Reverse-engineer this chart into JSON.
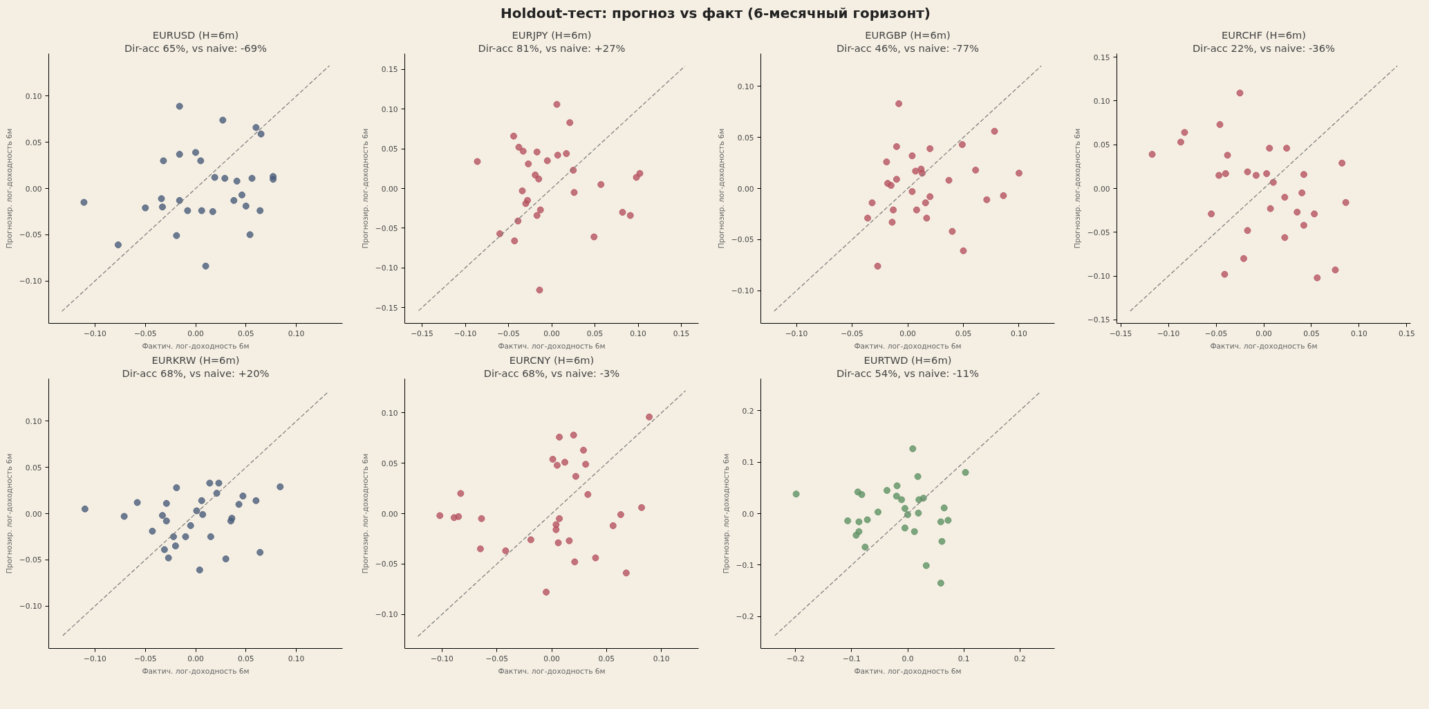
{
  "chart_data": [
    {
      "type": "scatter",
      "title": "EURUSD (H=6m)",
      "subtitle": "Dir-acc 65%, vs naive: -69%",
      "xlabel": "Фактич. лог-доходность 6м",
      "ylabel": "Прогнозир. лог-доходность 6м",
      "annotations": [
        "Holdout-тест: прогноз vs факт (6-месячный горизонт)"
      ],
      "grid": false,
      "xlim": [
        -0.146,
        0.146
      ],
      "ylim": [
        -0.146,
        0.146
      ],
      "xticks": [
        {
          "value": -0.1,
          "label": "−0.10"
        },
        {
          "value": -0.05,
          "label": "−0.05"
        },
        {
          "value": 0,
          "label": "0.00"
        },
        0.05,
        {
          "value": 0.1,
          "label": "0.10"
        }
      ],
      "yticks": [
        {
          "value": -0.1,
          "label": "−0.10"
        },
        {
          "value": -0.05,
          "label": "−0.05"
        },
        {
          "value": 0,
          "label": "0.00"
        },
        0.05,
        {
          "value": 0.1,
          "label": "0.10"
        }
      ],
      "series": [
        {
          "marker": "circle",
          "color": "#4a5d7a",
          "x": [
            -0.111,
            -0.077,
            -0.05,
            -0.034,
            -0.033,
            -0.032,
            -0.016,
            -0.016,
            -0.016,
            -0.019,
            -0.008,
            0.0,
            0.005,
            0.006,
            0.01,
            0.017,
            0.019,
            0.027,
            0.029,
            0.038,
            0.041,
            0.046,
            0.05,
            0.054,
            0.056,
            0.06,
            0.065,
            0.064,
            0.077,
            0.077
          ],
          "values": [
            -0.015,
            -0.061,
            -0.021,
            -0.011,
            -0.02,
            0.03,
            0.089,
            0.037,
            -0.013,
            -0.051,
            -0.024,
            0.039,
            0.03,
            -0.024,
            -0.084,
            -0.025,
            0.012,
            0.074,
            0.011,
            -0.013,
            0.008,
            -0.007,
            -0.019,
            -0.05,
            0.011,
            0.066,
            0.059,
            -0.024,
            0.01,
            0.013
          ]
        },
        {
          "type": "line",
          "marker": "none",
          "line_style": "dashed",
          "color": "#7a7a7a",
          "x": [
            -0.133,
            0.133
          ],
          "values": [
            -0.133,
            0.133
          ]
        }
      ]
    },
    {
      "type": "scatter",
      "title": "EURJPY (H=6m)",
      "subtitle": "Dir-acc 81%, vs naive: +27%",
      "xlabel": "Фактич. лог-доходность 6м",
      "ylabel": "Прогнозир. лог-доходность 6м",
      "grid": false,
      "xlim": [
        -0.17,
        0.17
      ],
      "ylim": [
        -0.17,
        0.17
      ],
      "xticks": [
        {
          "value": -0.15,
          "label": "−0.15"
        },
        {
          "value": -0.1,
          "label": "−0.10"
        },
        {
          "value": -0.05,
          "label": "−0.05"
        },
        {
          "value": 0,
          "label": "0.00"
        },
        0.05,
        {
          "value": 0.1,
          "label": "0.10"
        },
        0.15
      ],
      "yticks": [
        {
          "value": -0.15,
          "label": "−0.15"
        },
        {
          "value": -0.1,
          "label": "−0.10"
        },
        {
          "value": -0.05,
          "label": "−0.05"
        },
        {
          "value": 0,
          "label": "0.00"
        },
        0.05,
        {
          "value": 0.1,
          "label": "0.10"
        },
        0.15
      ],
      "series": [
        {
          "marker": "circle",
          "color": "#b5525f",
          "x": [
            -0.086,
            -0.06,
            -0.044,
            -0.043,
            -0.039,
            -0.038,
            -0.033,
            -0.034,
            -0.028,
            -0.03,
            -0.027,
            -0.019,
            -0.015,
            -0.017,
            -0.017,
            -0.013,
            -0.014,
            -0.005,
            0.006,
            0.007,
            0.017,
            0.021,
            0.025,
            0.026,
            0.049,
            0.057,
            0.082,
            0.091,
            0.098,
            0.102
          ],
          "values": [
            0.034,
            -0.057,
            0.066,
            -0.066,
            -0.041,
            0.052,
            0.047,
            -0.003,
            -0.015,
            -0.019,
            0.031,
            0.017,
            0.012,
            0.046,
            -0.034,
            -0.027,
            -0.128,
            0.035,
            0.106,
            0.042,
            0.044,
            0.083,
            0.023,
            -0.005,
            -0.061,
            0.005,
            -0.03,
            -0.034,
            0.014,
            0.019
          ]
        },
        {
          "type": "line",
          "marker": "none",
          "line_style": "dashed",
          "color": "#7a7a7a",
          "x": [
            -0.154,
            0.154
          ],
          "values": [
            -0.154,
            0.154
          ]
        }
      ]
    },
    {
      "type": "scatter",
      "title": "EURGBP (H=6m)",
      "subtitle": "Dir-acc 46%, vs naive: -77%",
      "xlabel": "Фактич. лог-доходность 6м",
      "ylabel": "Прогнозир. лог-доходность 6м",
      "grid": false,
      "xlim": [
        -0.132,
        0.132
      ],
      "ylim": [
        -0.132,
        0.132
      ],
      "xticks": [
        {
          "value": -0.1,
          "label": "−0.10"
        },
        {
          "value": -0.05,
          "label": "−0.05"
        },
        {
          "value": 0,
          "label": "0.00"
        },
        0.05,
        {
          "value": 0.1,
          "label": "0.10"
        }
      ],
      "yticks": [
        {
          "value": -0.1,
          "label": "−0.10"
        },
        {
          "value": -0.05,
          "label": "−0.05"
        },
        {
          "value": 0,
          "label": "0.00"
        },
        0.05,
        {
          "value": 0.1,
          "label": "0.10"
        }
      ],
      "series": [
        {
          "marker": "circle",
          "color": "#b5525f",
          "x": [
            -0.036,
            -0.032,
            -0.027,
            -0.019,
            -0.018,
            -0.015,
            -0.014,
            -0.013,
            -0.01,
            -0.01,
            -0.008,
            0.004,
            0.004,
            0.007,
            0.008,
            0.012,
            0.013,
            0.016,
            0.017,
            0.02,
            0.02,
            0.037,
            0.04,
            0.049,
            0.05,
            0.061,
            0.071,
            0.078,
            0.086,
            0.1
          ],
          "values": [
            -0.029,
            -0.014,
            -0.076,
            0.026,
            0.005,
            0.003,
            -0.033,
            -0.021,
            0.009,
            0.041,
            0.083,
            0.032,
            -0.003,
            0.017,
            -0.021,
            0.019,
            0.015,
            -0.014,
            -0.029,
            0.039,
            -0.008,
            0.008,
            -0.042,
            0.043,
            -0.061,
            0.018,
            -0.011,
            0.056,
            -0.007,
            0.015
          ]
        },
        {
          "type": "line",
          "marker": "none",
          "line_style": "dashed",
          "color": "#7a7a7a",
          "x": [
            -0.12,
            0.12
          ],
          "values": [
            -0.12,
            0.12
          ]
        }
      ]
    },
    {
      "type": "scatter",
      "title": "EURCHF (H=6m)",
      "subtitle": "Dir-acc 22%, vs naive: -36%",
      "xlabel": "Фактич. лог-доходность 6м",
      "ylabel": "Прогнозир. лог-доходность 6м",
      "grid": false,
      "xlim": [
        -0.154,
        0.154
      ],
      "ylim": [
        -0.154,
        0.154
      ],
      "xticks": [
        {
          "value": -0.15,
          "label": "−0.15"
        },
        {
          "value": -0.1,
          "label": "−0.10"
        },
        {
          "value": -0.05,
          "label": "−0.05"
        },
        {
          "value": 0,
          "label": "0.00"
        },
        0.05,
        {
          "value": 0.1,
          "label": "0.10"
        },
        0.15
      ],
      "yticks": [
        {
          "value": -0.15,
          "label": "−0.15"
        },
        {
          "value": -0.1,
          "label": "−0.10"
        },
        {
          "value": -0.05,
          "label": "−0.05"
        },
        {
          "value": 0,
          "label": "0.00"
        },
        0.05,
        {
          "value": 0.1,
          "label": "0.10"
        },
        0.15
      ],
      "series": [
        {
          "marker": "circle",
          "color": "#b5525f",
          "x": [
            -0.117,
            -0.087,
            -0.083,
            -0.055,
            -0.047,
            -0.046,
            -0.041,
            -0.04,
            -0.038,
            -0.025,
            -0.021,
            -0.017,
            -0.017,
            -0.008,
            0.003,
            0.006,
            0.007,
            0.01,
            0.022,
            0.022,
            0.024,
            0.035,
            0.04,
            0.042,
            0.042,
            0.053,
            0.056,
            0.075,
            0.082,
            0.086
          ],
          "values": [
            0.039,
            0.053,
            0.064,
            -0.029,
            0.015,
            0.073,
            -0.098,
            0.017,
            0.038,
            0.109,
            -0.08,
            0.019,
            -0.048,
            0.015,
            0.017,
            0.046,
            -0.023,
            0.007,
            -0.056,
            -0.01,
            0.046,
            -0.027,
            -0.005,
            -0.042,
            0.016,
            -0.029,
            -0.102,
            -0.093,
            0.029,
            -0.016
          ]
        },
        {
          "type": "line",
          "marker": "none",
          "line_style": "dashed",
          "color": "#7a7a7a",
          "x": [
            -0.14,
            0.14
          ],
          "values": [
            -0.14,
            0.14
          ]
        }
      ]
    },
    {
      "type": "scatter",
      "title": "EURKRW (H=6m)",
      "subtitle": "Dir-acc 68%, vs naive: +20%",
      "xlabel": "Фактич. лог-доходность 6м",
      "ylabel": "Прогнозир. лог-доходность 6м",
      "grid": false,
      "xlim": [
        -0.146,
        0.146
      ],
      "ylim": [
        -0.146,
        0.146
      ],
      "xticks": [
        {
          "value": -0.1,
          "label": "−0.10"
        },
        {
          "value": -0.05,
          "label": "−0.05"
        },
        {
          "value": 0,
          "label": "0.00"
        },
        0.05,
        {
          "value": 0.1,
          "label": "0.10"
        }
      ],
      "yticks": [
        {
          "value": -0.1,
          "label": "−0.10"
        },
        {
          "value": -0.05,
          "label": "−0.05"
        },
        {
          "value": 0,
          "label": "0.00"
        },
        0.05,
        {
          "value": 0.1,
          "label": "0.10"
        }
      ],
      "series": [
        {
          "marker": "circle",
          "color": "#4a5d7a",
          "x": [
            -0.11,
            -0.071,
            -0.058,
            -0.043,
            -0.033,
            -0.029,
            -0.029,
            -0.031,
            -0.027,
            -0.022,
            -0.02,
            -0.019,
            -0.01,
            -0.005,
            0.001,
            0.006,
            0.007,
            0.004,
            0.014,
            0.015,
            0.021,
            0.023,
            0.03,
            0.035,
            0.036,
            0.043,
            0.047,
            0.06,
            0.064,
            0.084
          ],
          "values": [
            0.005,
            -0.003,
            0.012,
            -0.019,
            -0.002,
            0.011,
            -0.008,
            -0.039,
            -0.048,
            -0.025,
            -0.035,
            0.028,
            -0.025,
            -0.013,
            0.003,
            0.014,
            -0.001,
            -0.061,
            0.033,
            -0.025,
            0.022,
            0.033,
            -0.049,
            -0.008,
            -0.005,
            0.01,
            0.019,
            0.014,
            -0.042,
            0.029
          ]
        },
        {
          "type": "line",
          "marker": "none",
          "line_style": "dashed",
          "color": "#7a7a7a",
          "x": [
            -0.132,
            0.132
          ],
          "values": [
            -0.132,
            0.132
          ]
        }
      ]
    },
    {
      "type": "scatter",
      "title": "EURCNY (H=6m)",
      "subtitle": "Dir-acc 68%, vs naive: -3%",
      "xlabel": "Фактич. лог-доходность 6м",
      "ylabel": "Прогнозир. лог-доходность 6м",
      "grid": false,
      "xlim": [
        -0.134,
        0.134
      ],
      "ylim": [
        -0.134,
        0.134
      ],
      "xticks": [
        {
          "value": -0.1,
          "label": "−0.10"
        },
        {
          "value": -0.05,
          "label": "−0.05"
        },
        {
          "value": 0,
          "label": "0.00"
        },
        0.05,
        {
          "value": 0.1,
          "label": "0.10"
        }
      ],
      "yticks": [
        {
          "value": -0.1,
          "label": "−0.10"
        },
        {
          "value": -0.05,
          "label": "−0.05"
        },
        {
          "value": 0,
          "label": "0.00"
        },
        0.05,
        {
          "value": 0.1,
          "label": "0.10"
        }
      ],
      "series": [
        {
          "marker": "circle",
          "color": "#b5525f",
          "x": [
            -0.102,
            -0.089,
            -0.085,
            -0.083,
            -0.064,
            -0.065,
            -0.042,
            -0.019,
            -0.005,
            0.001,
            0.004,
            0.004,
            0.005,
            0.006,
            0.007,
            0.007,
            0.012,
            0.016,
            0.02,
            0.022,
            0.021,
            0.029,
            0.031,
            0.033,
            0.04,
            0.056,
            0.063,
            0.068,
            0.082,
            0.089
          ],
          "values": [
            -0.002,
            -0.004,
            -0.003,
            0.02,
            -0.005,
            -0.035,
            -0.037,
            -0.026,
            -0.078,
            0.054,
            -0.011,
            -0.016,
            0.048,
            -0.029,
            0.076,
            -0.005,
            0.051,
            -0.027,
            0.078,
            0.037,
            -0.048,
            0.063,
            0.049,
            0.019,
            -0.044,
            -0.012,
            -0.001,
            -0.059,
            0.006,
            0.096
          ]
        },
        {
          "type": "line",
          "marker": "none",
          "line_style": "dashed",
          "color": "#7a7a7a",
          "x": [
            -0.122,
            0.122
          ],
          "values": [
            -0.122,
            0.122
          ]
        }
      ]
    },
    {
      "type": "scatter",
      "title": "EURTWD (H=6m)",
      "subtitle": "Dir-acc 54%, vs naive: -11%",
      "xlabel": "Фактич. лог-доходность 6м",
      "ylabel": "Прогнозир. лог-доходность 6м",
      "grid": false,
      "xlim": [
        -0.262,
        0.262
      ],
      "ylim": [
        -0.262,
        0.262
      ],
      "xticks": [
        {
          "value": -0.2,
          "label": "−0.2"
        },
        {
          "value": -0.1,
          "label": "−0.1"
        },
        {
          "value": 0,
          "label": "0.0"
        },
        0.1,
        0.2
      ],
      "yticks": [
        {
          "value": -0.2,
          "label": "−0.2"
        },
        {
          "value": -0.1,
          "label": "−0.1"
        },
        {
          "value": 0,
          "label": "0.0"
        },
        0.1,
        0.2
      ],
      "series": [
        {
          "marker": "circle",
          "color": "#5e9163",
          "x": [
            -0.199,
            -0.107,
            -0.092,
            -0.089,
            -0.087,
            -0.087,
            -0.082,
            -0.076,
            -0.072,
            -0.053,
            -0.037,
            -0.02,
            -0.019,
            -0.011,
            -0.005,
            -0.005,
            0.0,
            0.009,
            0.012,
            0.018,
            0.019,
            0.02,
            0.028,
            0.033,
            0.059,
            0.061,
            0.059,
            0.065,
            0.072,
            0.103
          ],
          "values": [
            0.038,
            -0.014,
            -0.042,
            0.042,
            -0.016,
            -0.035,
            0.037,
            -0.065,
            -0.012,
            0.003,
            0.045,
            0.034,
            0.054,
            0.027,
            0.01,
            -0.028,
            -0.002,
            0.126,
            -0.035,
            0.072,
            0.001,
            0.027,
            0.03,
            -0.101,
            -0.016,
            -0.054,
            -0.135,
            0.011,
            -0.013,
            0.08
          ]
        },
        {
          "type": "line",
          "marker": "none",
          "line_style": "dashed",
          "color": "#7a7a7a",
          "x": [
            -0.237,
            0.237
          ],
          "values": [
            -0.237,
            0.237
          ]
        }
      ]
    }
  ]
}
